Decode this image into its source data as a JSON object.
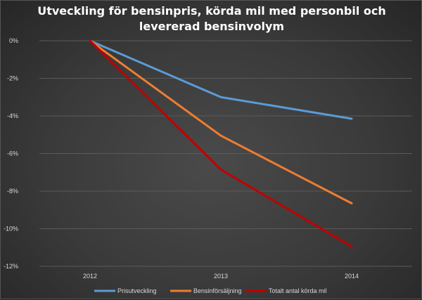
{
  "chart_data": {
    "type": "line",
    "title_lines": [
      "Utveckling för bensinpris, körda mil med personbil och",
      "levererad bensinvolym"
    ],
    "categories": [
      "2012",
      "2013",
      "2014"
    ],
    "series": [
      {
        "name": "Prisutveckling",
        "color": "#5b9bd5",
        "values": [
          0,
          -3.0,
          -4.15
        ]
      },
      {
        "name": "Bensinförsäljning",
        "color": "#ed7d31",
        "values": [
          0,
          -5.05,
          -8.65
        ]
      },
      {
        "name": "Totalt antal körda mil",
        "color": "#c00000",
        "values": [
          0,
          -6.85,
          -10.95
        ]
      }
    ],
    "ylim": [
      -12,
      0
    ],
    "yticks": [
      0,
      -2,
      -4,
      -6,
      -8,
      -10,
      -12
    ],
    "ytick_labels": [
      "0%",
      "-2%",
      "-4%",
      "-6%",
      "-8%",
      "-10%",
      "-12%"
    ],
    "grid": true,
    "legend_position": "bottom"
  }
}
